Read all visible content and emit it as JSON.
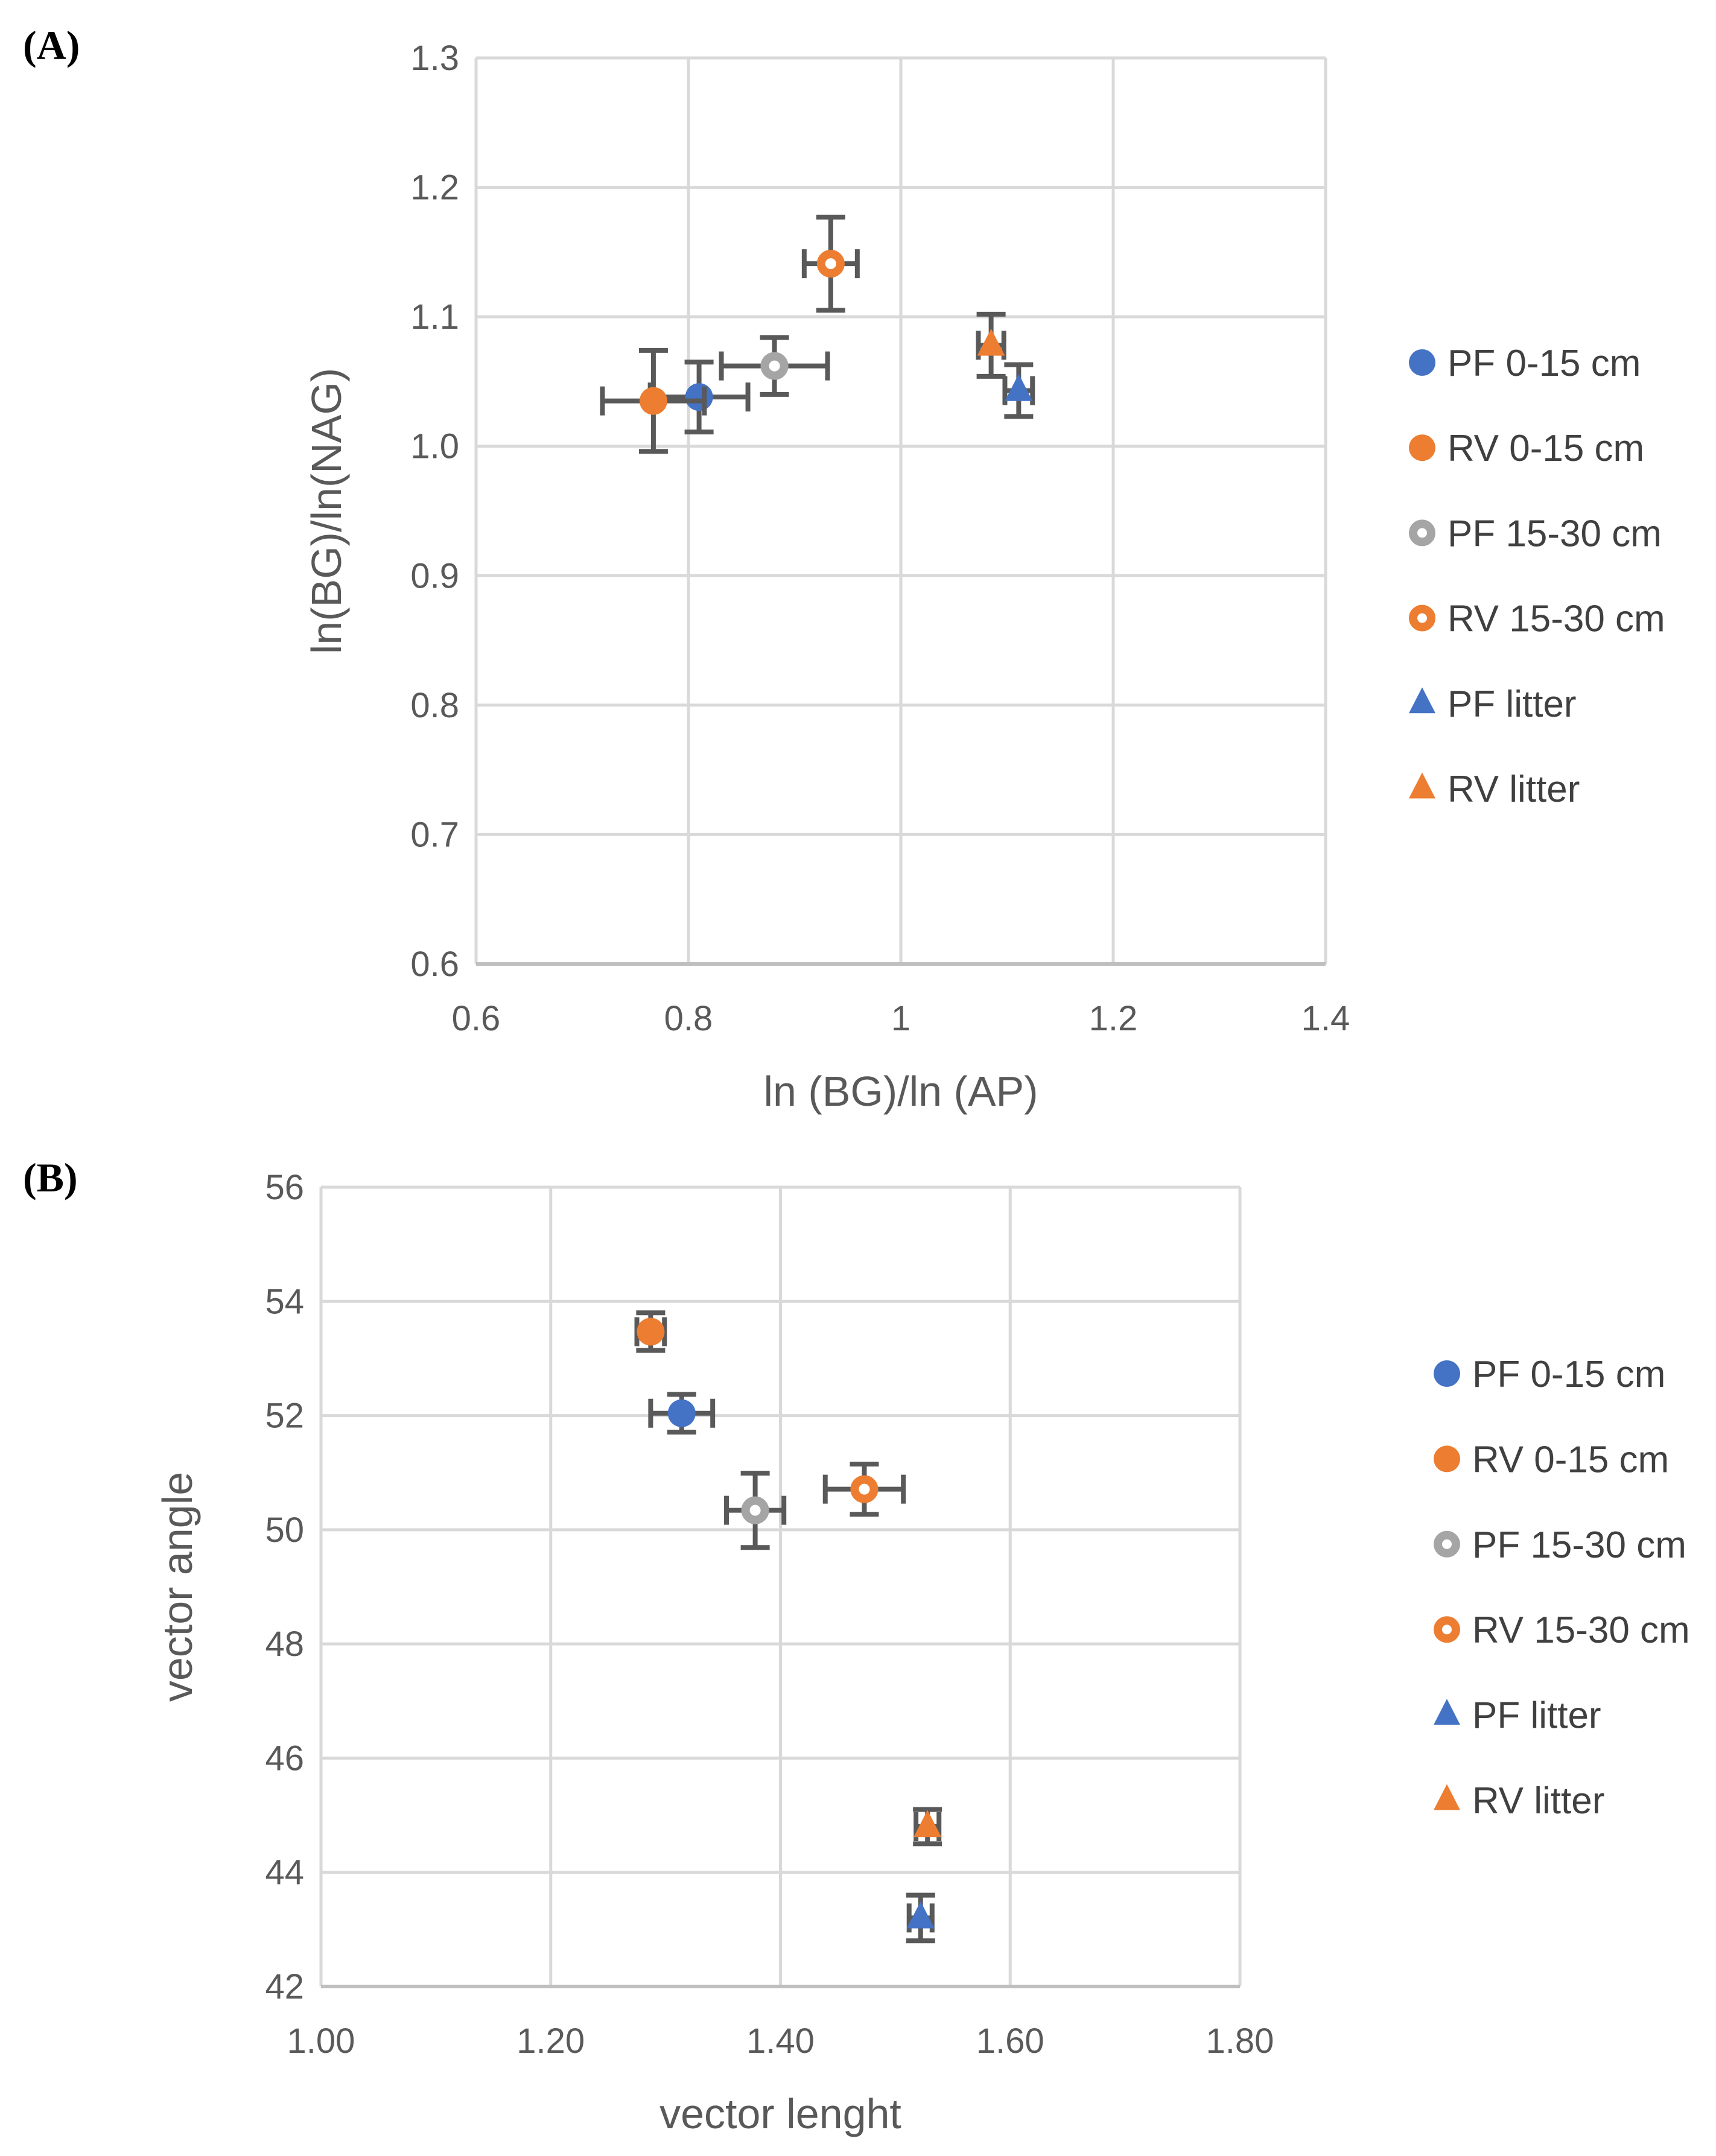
{
  "colors": {
    "blue": "#4472C4",
    "orange": "#ED7D31",
    "gray": "#A5A5A5",
    "err": "#595959",
    "grid": "#D9D9D9"
  },
  "chart_data": [
    {
      "panel_label": "(A)",
      "type": "scatter",
      "xlabel": "ln (BG)/ln (AP)",
      "ylabel": "ln(BG)/ln(NAG)",
      "xlim": [
        0.6,
        1.4
      ],
      "ylim": [
        0.6,
        1.3
      ],
      "xticks": [
        0.6,
        0.8,
        1,
        1.2,
        1.4
      ],
      "xtick_labels": [
        "0.6",
        "0.8",
        "1",
        "1.2",
        "1.4"
      ],
      "yticks": [
        0.6,
        0.7,
        0.8,
        0.9,
        1.0,
        1.1,
        1.2,
        1.3
      ],
      "ytick_labels": [
        "0.6",
        "0.7",
        "0.8",
        "0.9",
        "1.0",
        "1.1",
        "1.2",
        "1.3"
      ],
      "grid": true,
      "legend_position": "right",
      "series": [
        {
          "name": "PF 0-15 cm",
          "marker": "circle",
          "color": "#4472C4",
          "filled": true,
          "x": 0.81,
          "y": 1.038,
          "xerr": 0.046,
          "yerr": 0.027
        },
        {
          "name": "RV 0-15 cm",
          "marker": "circle",
          "color": "#ED7D31",
          "filled": true,
          "x": 0.767,
          "y": 1.035,
          "xerr": 0.048,
          "yerr": 0.039
        },
        {
          "name": "PF 15-30 cm",
          "marker": "circle",
          "color": "#A5A5A5",
          "filled": false,
          "x": 0.881,
          "y": 1.062,
          "xerr": 0.05,
          "yerr": 0.022
        },
        {
          "name": "RV 15-30 cm",
          "marker": "circle",
          "color": "#ED7D31",
          "filled": false,
          "x": 0.934,
          "y": 1.141,
          "xerr": 0.025,
          "yerr": 0.036
        },
        {
          "name": "PF litter",
          "marker": "triangle",
          "color": "#4472C4",
          "filled": true,
          "x": 1.111,
          "y": 1.043,
          "xerr": 0.013,
          "yerr": 0.02
        },
        {
          "name": "RV litter",
          "marker": "triangle",
          "color": "#ED7D31",
          "filled": true,
          "x": 1.085,
          "y": 1.078,
          "xerr": 0.012,
          "yerr": 0.024
        }
      ]
    },
    {
      "panel_label": "(B)",
      "type": "scatter",
      "xlabel": "vector lenght",
      "ylabel": "vector angle",
      "xlim": [
        1.0,
        1.8
      ],
      "ylim": [
        42,
        56
      ],
      "xticks": [
        1.0,
        1.2,
        1.4,
        1.6,
        1.8
      ],
      "xtick_labels": [
        "1.00",
        "1.20",
        "1.40",
        "1.60",
        "1.80"
      ],
      "yticks": [
        42,
        44,
        46,
        48,
        50,
        52,
        54,
        56
      ],
      "ytick_labels": [
        "42",
        "44",
        "46",
        "48",
        "50",
        "52",
        "54",
        "56"
      ],
      "grid": true,
      "legend_position": "right",
      "series": [
        {
          "name": "PF 0-15 cm",
          "marker": "circle",
          "color": "#4472C4",
          "filled": true,
          "x": 1.314,
          "y": 52.04,
          "xerr": 0.027,
          "yerr": 0.33
        },
        {
          "name": "RV 0-15 cm",
          "marker": "circle",
          "color": "#ED7D31",
          "filled": true,
          "x": 1.287,
          "y": 53.47,
          "xerr": 0.012,
          "yerr": 0.33
        },
        {
          "name": "PF 15-30 cm",
          "marker": "circle",
          "color": "#A5A5A5",
          "filled": false,
          "x": 1.378,
          "y": 50.34,
          "xerr": 0.025,
          "yerr": 0.65
        },
        {
          "name": "RV 15-30 cm",
          "marker": "circle",
          "color": "#ED7D31",
          "filled": false,
          "x": 1.473,
          "y": 50.71,
          "xerr": 0.034,
          "yerr": 0.44
        },
        {
          "name": "PF litter",
          "marker": "triangle",
          "color": "#4472C4",
          "filled": true,
          "x": 1.522,
          "y": 43.2,
          "xerr": 0.01,
          "yerr": 0.4
        },
        {
          "name": "RV litter",
          "marker": "triangle",
          "color": "#ED7D31",
          "filled": true,
          "x": 1.528,
          "y": 44.8,
          "xerr": 0.01,
          "yerr": 0.3
        }
      ]
    }
  ]
}
